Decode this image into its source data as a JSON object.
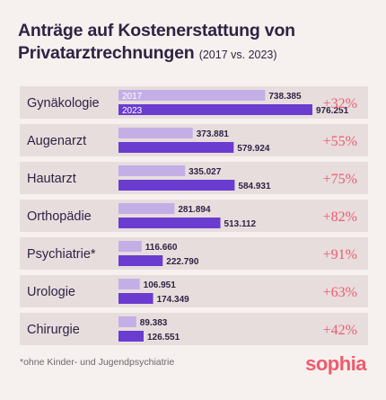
{
  "title": {
    "line1": "Anträge auf Kostenerstattung von",
    "line2": "Privatarztrechnungen",
    "subtitle": "(2017 vs. 2023)"
  },
  "colors": {
    "background": "#f6f1ee",
    "row_band": "#e7dddd",
    "bar_2017": "#c4aee6",
    "bar_2023": "#6a3ccf",
    "change_text": "#f05a6e",
    "brand": "#f05a6e"
  },
  "chart_data": {
    "type": "bar",
    "orientation": "horizontal",
    "categories": [
      "Gynäkologie",
      "Augenarzt",
      "Hautarzt",
      "Orthopädie",
      "Psychiatrie*",
      "Urologie",
      "Chirurgie"
    ],
    "series": [
      {
        "name": "2017",
        "values": [
          738385,
          373881,
          335027,
          281894,
          116660,
          106951,
          89383
        ],
        "labels": [
          "738.385",
          "373.881",
          "335.027",
          "281.894",
          "116.660",
          "106.951",
          "89.383"
        ]
      },
      {
        "name": "2023",
        "values": [
          976251,
          579924,
          584931,
          513112,
          222790,
          174349,
          126551
        ],
        "labels": [
          "976.251",
          "579.924",
          "584.931",
          "513.112",
          "222.790",
          "174.349",
          "126.551"
        ]
      }
    ],
    "changes": [
      "+32%",
      "+55%",
      "+75%",
      "+82%",
      "+91%",
      "+63%",
      "+42%"
    ],
    "legend": "inside first bars"
  },
  "footnote": "*ohne Kinder- und Jugendpsychiatrie",
  "brand": "sophia"
}
